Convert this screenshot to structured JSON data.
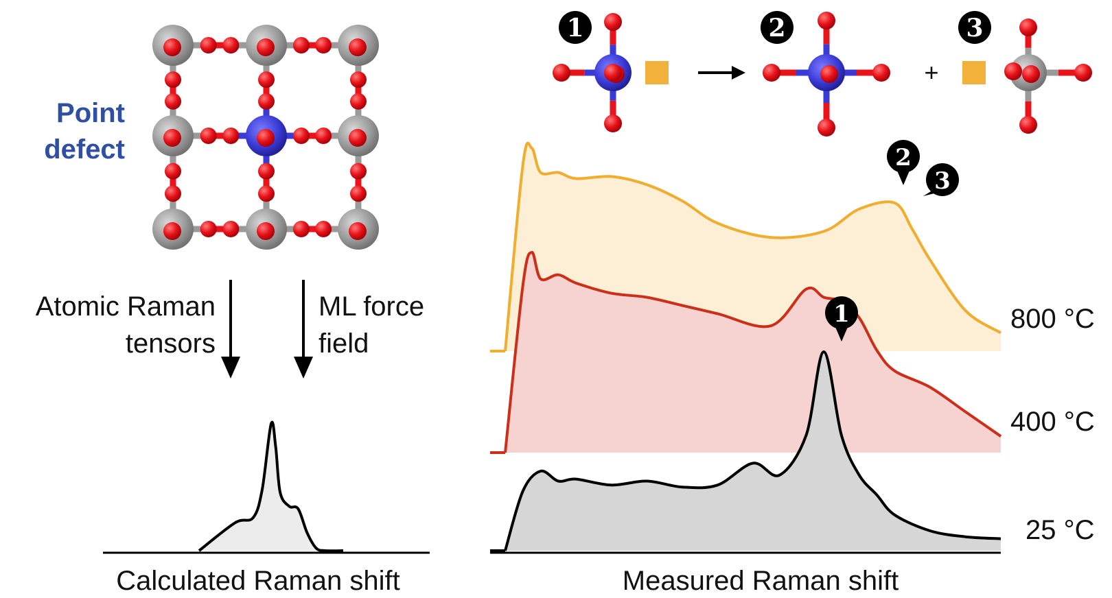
{
  "left_panel": {
    "defect_label_line1": "Point",
    "defect_label_line2": "defect",
    "arrow_left_line1": "Atomic Raman",
    "arrow_left_line2": "tensors",
    "arrow_right_line1": "ML force",
    "arrow_right_line2": "field",
    "xlabel": "Calculated Raman shift"
  },
  "right_panel": {
    "reaction": {
      "labels": [
        "1",
        "2",
        "3"
      ],
      "plus": "+"
    },
    "xlabel": "Measured Raman shift",
    "peak_markers": [
      "1",
      "2",
      "3"
    ]
  },
  "colors": {
    "oxygen": "#e8141a",
    "host_atom": "#9a9a9a",
    "defect_atom": "#3a3ad6",
    "vacancy": "#f2b13a",
    "trace_800": "#f0ad2e",
    "fill_800": "#fcefd6",
    "trace_400": "#cc2f18",
    "fill_400": "#f6d3d1",
    "trace_25": "#000000",
    "fill_25": "#d6d6d6"
  },
  "chart_data": [
    {
      "type": "area",
      "title": "",
      "xlabel": "Calculated Raman shift",
      "ylabel": "",
      "series": [
        {
          "name": "",
          "x": [
            0,
            4,
            6,
            7,
            8,
            8.5,
            9,
            10,
            11,
            12,
            13,
            14,
            16
          ],
          "y": [
            0,
            0.22,
            0.26,
            0.48,
            1.0,
            0.82,
            0.46,
            0.35,
            0.33,
            0.14,
            0.02,
            0,
            0
          ]
        }
      ]
    },
    {
      "type": "area",
      "title": "",
      "xlabel": "Measured Raman shift",
      "ylabel": "",
      "series": [
        {
          "name": "25 °C",
          "x": [
            0,
            1,
            2,
            3,
            4,
            6,
            8,
            10,
            12,
            14,
            15.5,
            17,
            18,
            19,
            20,
            21,
            22,
            24,
            26,
            28
          ],
          "y": [
            0,
            0.3,
            0.4,
            0.35,
            0.36,
            0.33,
            0.35,
            0.32,
            0.33,
            0.44,
            0.38,
            0.58,
            1.0,
            0.58,
            0.38,
            0.28,
            0.18,
            0.1,
            0.07,
            0.06
          ]
        },
        {
          "name": "400 °C",
          "x": [
            0,
            1,
            1.5,
            2,
            3,
            4,
            6,
            8,
            10,
            12,
            15,
            17,
            18,
            19,
            20,
            21,
            22,
            24,
            26,
            28
          ],
          "y": [
            0,
            0.82,
            0.98,
            0.85,
            0.87,
            0.83,
            0.78,
            0.76,
            0.72,
            0.68,
            0.62,
            0.8,
            0.76,
            0.74,
            0.66,
            0.5,
            0.4,
            0.32,
            0.2,
            0.08
          ]
        },
        {
          "name": "800 °C",
          "x": [
            0,
            1,
            1.5,
            2,
            3,
            4,
            6,
            8,
            10,
            12,
            15,
            18,
            20,
            22,
            23,
            24,
            26,
            28
          ],
          "y": [
            0,
            0.92,
            1.0,
            0.88,
            0.88,
            0.85,
            0.86,
            0.82,
            0.74,
            0.63,
            0.56,
            0.59,
            0.7,
            0.73,
            0.6,
            0.45,
            0.2,
            0.09
          ]
        }
      ]
    }
  ]
}
